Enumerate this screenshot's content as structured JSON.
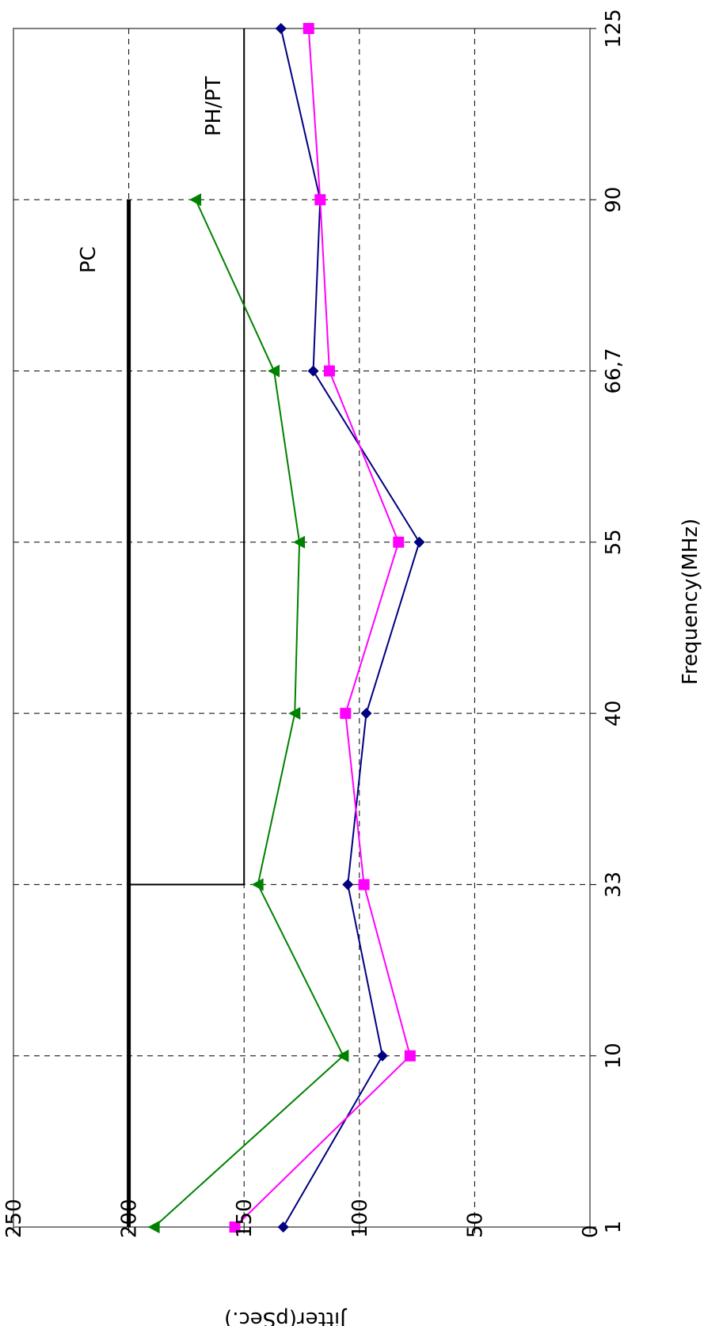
{
  "chart_data": {
    "type": "line",
    "orientation": "rotated-90-clockwise",
    "xlabel": "Frequency(MHz)",
    "ylabel": "Jitter(pSec.)",
    "categories": [
      "1",
      "10",
      "33",
      "40",
      "55",
      "66,7",
      "90",
      "125"
    ],
    "y_ticks": [
      0,
      50,
      100,
      150,
      200,
      250
    ],
    "ylim": [
      0,
      250
    ],
    "grid": true,
    "legend": "none",
    "series": [
      {
        "marker": "diamond",
        "color": "#000080",
        "values": [
          133,
          90,
          105,
          97,
          74,
          120,
          117,
          134
        ]
      },
      {
        "marker": "square",
        "color": "#ff00ff",
        "values": [
          154,
          78,
          98,
          106,
          83,
          113,
          117,
          122
        ]
      },
      {
        "marker": "triangle",
        "color": "#008000",
        "values": [
          189,
          107,
          144,
          128,
          126,
          137,
          171,
          null
        ]
      }
    ],
    "reference_lines": [
      {
        "label": "PC",
        "segments": [
          {
            "from": "1",
            "to": "90",
            "value": 200
          }
        ]
      },
      {
        "label": "PH/PT",
        "segments": [
          {
            "from": "33",
            "to": "125",
            "value": 150
          }
        ]
      }
    ]
  }
}
